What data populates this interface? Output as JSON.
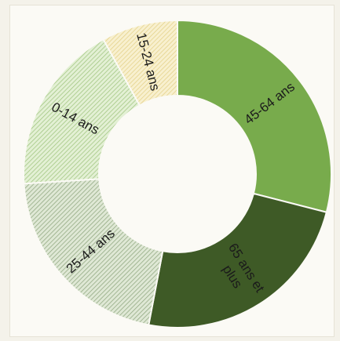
{
  "chart_data": {
    "type": "pie",
    "variant": "donut",
    "title": "",
    "slices": [
      {
        "label": "45-64 ans",
        "label_lines": [
          "45-64 ans"
        ],
        "value": 29,
        "color": "#78ab4c",
        "pattern": "none"
      },
      {
        "label": "65 ans et plus",
        "label_lines": [
          "65 ans et",
          "plus"
        ],
        "value": 24,
        "color": "#3e5a26",
        "pattern": "none"
      },
      {
        "label": "25-44 ans",
        "label_lines": [
          "25-44 ans"
        ],
        "value": 21,
        "color": "#bcd3a6",
        "pattern": "diagonal-hatch"
      },
      {
        "label": "0-14 ans",
        "label_lines": [
          "0-14 ans"
        ],
        "value": 18,
        "color": "#cfe4b8",
        "pattern": "diagonal-hatch"
      },
      {
        "label": "15-24 ans",
        "label_lines": [
          "15-24 ans"
        ],
        "value": 8,
        "color": "#f1e4ad",
        "pattern": "diagonal-hatch"
      }
    ]
  }
}
